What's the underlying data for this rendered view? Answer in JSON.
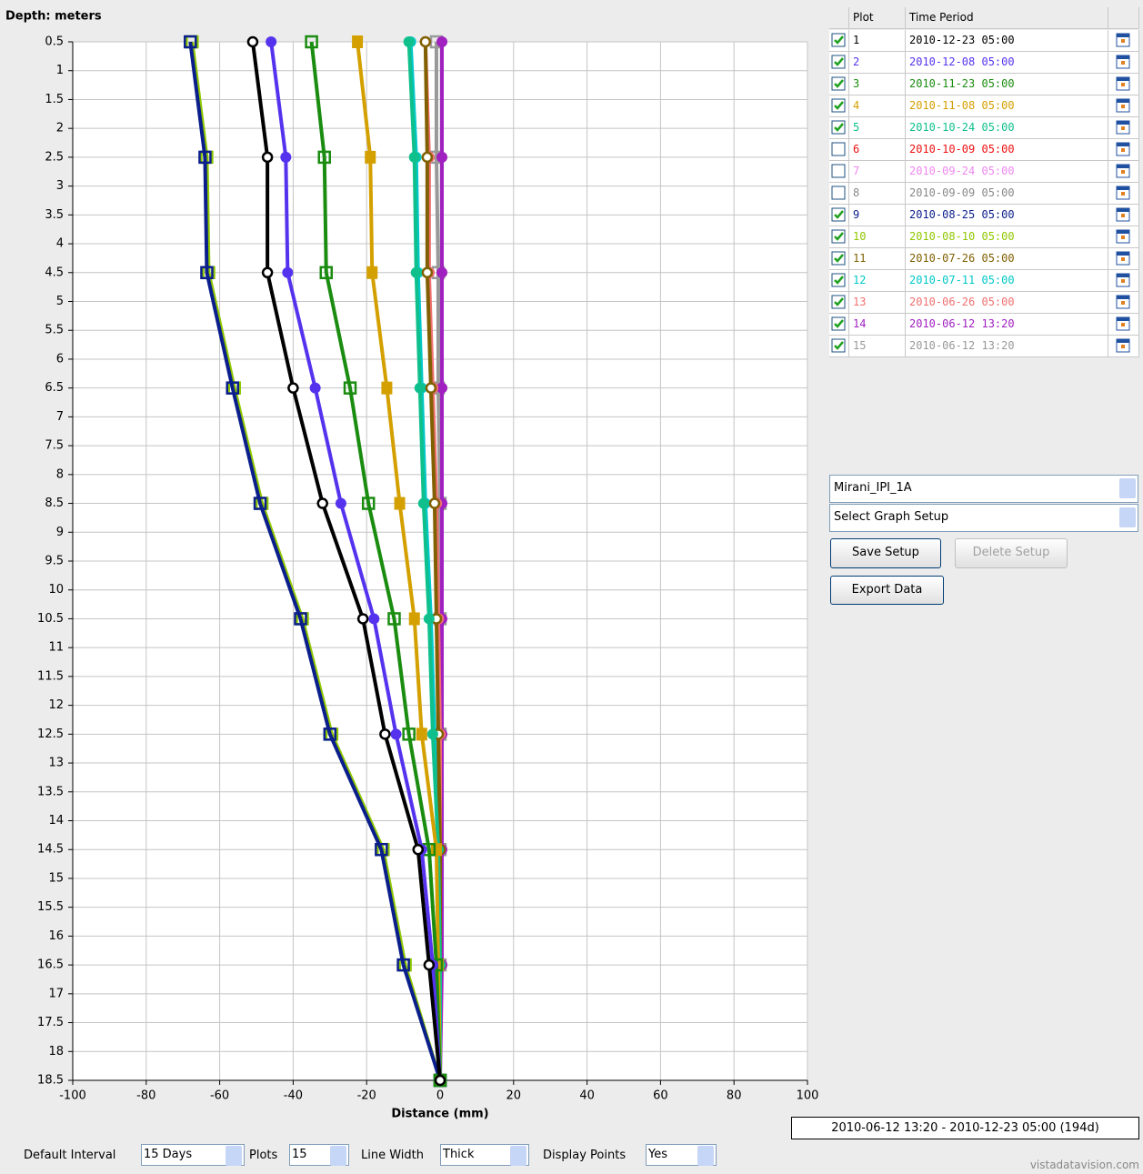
{
  "chart_data": {
    "type": "line",
    "y_label": "Depth: meters",
    "x_label": "Distance (mm)",
    "y": [
      0.5,
      2.5,
      4.5,
      6.5,
      8.5,
      10.5,
      12.5,
      14.5,
      16.5,
      18.5
    ],
    "xlim": [
      -100,
      100
    ],
    "xticks": [
      -100,
      -80,
      -60,
      -40,
      -20,
      0,
      20,
      40,
      60,
      80,
      100
    ],
    "ylim": [
      18.5,
      0.5
    ],
    "yticks": [
      0.5,
      1,
      1.5,
      2,
      2.5,
      3,
      3.5,
      4,
      4.5,
      5,
      5.5,
      6,
      6.5,
      7,
      7.5,
      8,
      8.5,
      9,
      9.5,
      10,
      10.5,
      11,
      11.5,
      12,
      12.5,
      13,
      13.5,
      14,
      14.5,
      15,
      15.5,
      16,
      16.5,
      17,
      17.5,
      18,
      18.5
    ],
    "grid": true,
    "series": [
      {
        "name": "1",
        "period": "2010-12-23 05:00",
        "checked": true,
        "color": "#000000",
        "marker": "circle",
        "values": [
          -51,
          -47,
          -47,
          -40,
          -32,
          -21,
          -15,
          -6,
          -3,
          0
        ]
      },
      {
        "name": "2",
        "period": "2010-12-08 05:00",
        "checked": true,
        "color": "#5533ee",
        "marker": "dot",
        "values": [
          -46,
          -42,
          -41.5,
          -34,
          -27,
          -18,
          -12,
          -5,
          -2,
          0
        ]
      },
      {
        "name": "3",
        "period": "2010-11-23 05:00",
        "checked": true,
        "color": "#1a8c10",
        "marker": "square",
        "values": [
          -35,
          -31.5,
          -31,
          -24.5,
          -19.5,
          -12.5,
          -8.5,
          -3,
          -1,
          0
        ]
      },
      {
        "name": "4",
        "period": "2010-11-08 05:00",
        "checked": true,
        "color": "#d4a000",
        "marker": "block",
        "values": [
          -22.5,
          -19,
          -18.5,
          -14.5,
          -11,
          -7,
          -5,
          -1,
          -0.5,
          0
        ]
      },
      {
        "name": "5",
        "period": "2010-10-24 05:00",
        "checked": true,
        "color": "#10c08c",
        "marker": "dot",
        "values": [
          -8.5,
          -7,
          -6.5,
          -5.5,
          -4.5,
          -3,
          -2,
          -0.5,
          0,
          0
        ]
      },
      {
        "name": "6",
        "period": "2010-10-09 05:00",
        "checked": false,
        "color": "#ee1111"
      },
      {
        "name": "7",
        "period": "2010-09-24 05:00",
        "checked": false,
        "color": "#ee88ee"
      },
      {
        "name": "8",
        "period": "2010-09-09 05:00",
        "checked": false,
        "color": "#888888"
      },
      {
        "name": "9",
        "period": "2010-08-25 05:00",
        "checked": true,
        "color": "#0a1e8c",
        "marker": "square",
        "values": [
          -68,
          -64,
          -63.5,
          -56.5,
          -49,
          -38,
          -30,
          -16,
          -10,
          0
        ]
      },
      {
        "name": "10",
        "period": "2010-08-10 05:00",
        "checked": true,
        "color": "#90c800",
        "marker": "square",
        "values": [
          -67.5,
          -63.5,
          -63,
          -56,
          -48.5,
          -37.5,
          -29.5,
          -15.5,
          -9.5,
          0
        ]
      },
      {
        "name": "11",
        "period": "2010-07-26 05:00",
        "checked": true,
        "color": "#806000",
        "marker": "circle",
        "values": [
          -4,
          -3.5,
          -3.5,
          -2.5,
          -1.5,
          -1,
          -0.5,
          0,
          0,
          0
        ]
      },
      {
        "name": "12",
        "period": "2010-07-11 05:00",
        "checked": true,
        "color": "#00c8c8",
        "marker": "dot",
        "values": [
          -8,
          -6.5,
          -6,
          -5,
          -4,
          -2.5,
          -1.5,
          -0.5,
          0,
          0
        ]
      },
      {
        "name": "13",
        "period": "2010-06-26 05:00",
        "checked": true,
        "color": "#f07070",
        "marker": "circle",
        "values": [
          -4,
          -3,
          -3,
          -2,
          -1,
          -0.5,
          0,
          0,
          0,
          0
        ]
      },
      {
        "name": "14",
        "period": "2010-06-12 13:20",
        "checked": true,
        "color": "#a020c0",
        "marker": "dot",
        "values": [
          0.5,
          0.5,
          0.5,
          0.5,
          0.5,
          0.5,
          0.5,
          0.5,
          0.5,
          0
        ]
      },
      {
        "name": "15",
        "period": "2010-06-12 13:20",
        "checked": true,
        "color": "#999999",
        "marker": "square",
        "values": [
          -1,
          -1,
          -0.5,
          -0.5,
          0,
          0,
          0,
          0,
          0,
          0
        ]
      }
    ]
  },
  "table": {
    "header": [
      "Plot",
      "Time Period"
    ]
  },
  "controls": {
    "instrument": "Mirani_IPI_1A",
    "graph_setup": "Select Graph Setup",
    "save": "Save Setup",
    "delete": "Delete Setup",
    "export": "Export Data",
    "range": "2010-06-12 13:20 - 2010-12-23 05:00 (194d)",
    "interval_label": "Default Interval",
    "interval": "15 Days",
    "plots_label": "Plots",
    "plots": "15",
    "width_label": "Line Width",
    "width": "Thick",
    "points_label": "Display Points",
    "points": "Yes"
  },
  "footer": "vistadatavision.com"
}
